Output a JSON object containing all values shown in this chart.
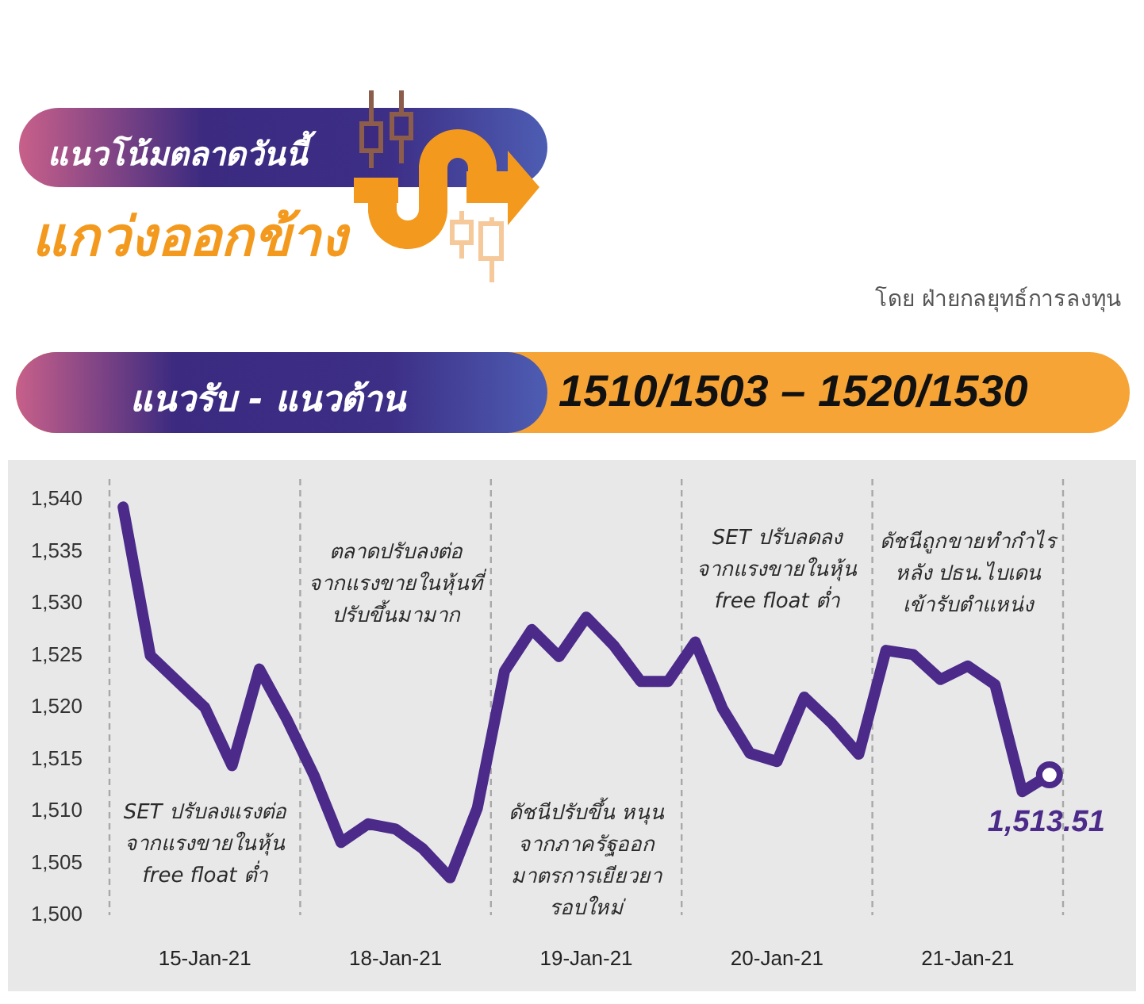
{
  "chart_data": {
    "type": "line",
    "title": "แนวโน้มตลาดวันนี้",
    "subtitle": "แกว่งออกข้าง",
    "categories": [
      null,
      null,
      null,
      "15-Jan-21",
      null,
      null,
      null,
      null,
      null,
      null,
      "18-Jan-21",
      null,
      null,
      null,
      null,
      null,
      null,
      "19-Jan-21",
      null,
      null,
      null,
      null,
      null,
      null,
      "20-Jan-21",
      null,
      null,
      null,
      null,
      null,
      null,
      "21-Jan-21",
      null,
      null,
      null
    ],
    "series": [
      {
        "color": "#4b2a8a",
        "values": [
          1539.3,
          1525.0,
          1522.5,
          1520.0,
          1514.4,
          1523.7,
          1518.9,
          1513.5,
          1507.0,
          1508.8,
          1508.3,
          1506.4,
          1503.6,
          1510.3,
          1523.5,
          1527.5,
          1524.9,
          1528.7,
          1526.0,
          1522.5,
          1522.5,
          1526.3,
          1519.9,
          1515.6,
          1514.8,
          1521.0,
          1518.5,
          1515.5,
          1525.5,
          1525.1,
          1522.7,
          1524.0,
          1522.2,
          1511.9,
          1513.51
        ],
        "value_labels": [
          null,
          null,
          null,
          null,
          null,
          null,
          null,
          null,
          null,
          null,
          null,
          null,
          null,
          null,
          null,
          null,
          null,
          null,
          null,
          null,
          null,
          null,
          null,
          null,
          null,
          null,
          null,
          null,
          null,
          null,
          null,
          null,
          null,
          null,
          "1,513.51"
        ]
      }
    ],
    "ylim": [
      1500,
      1542
    ],
    "yticks": [
      {
        "value": 1500,
        "label": "1,500"
      },
      {
        "value": 1505,
        "label": "1,505"
      },
      {
        "value": 1510,
        "label": "1,510"
      },
      {
        "value": 1515,
        "label": "1,515"
      },
      {
        "value": 1520,
        "label": "1,520"
      },
      {
        "value": 1525,
        "label": "1,525"
      },
      {
        "value": 1530,
        "label": "1,530"
      },
      {
        "value": 1535,
        "label": "1,535"
      },
      {
        "value": 1540,
        "label": "1,540"
      }
    ],
    "grid": "x",
    "annotations": [
      "โดย ฝ่ายกลยุทธ์การลงทุน",
      "แนวรับ - แนวต้าน",
      "1510/1503 – 1520/1530",
      "SET ปรับลงแรงต่อ\nจากแรงขายในหุ้น\nfree float ต่ำ",
      "ตลาดปรับลงต่อ\nจากแรงขายในหุ้นที่\nปรับขึ้นมามาก",
      "ดัชนีปรับขึ้น หนุน\nจากภาครัฐออก\nมาตรการเยียวยา\nรอบใหม่",
      "SET ปรับลดลง\nจากแรงขายในหุ้น\nfree float ต่ำ",
      "ดัชนีถูกขายทำกำไร\nหลัง ปธน.ไบเดน\nเข้ารับตำแหน่ง"
    ]
  }
}
